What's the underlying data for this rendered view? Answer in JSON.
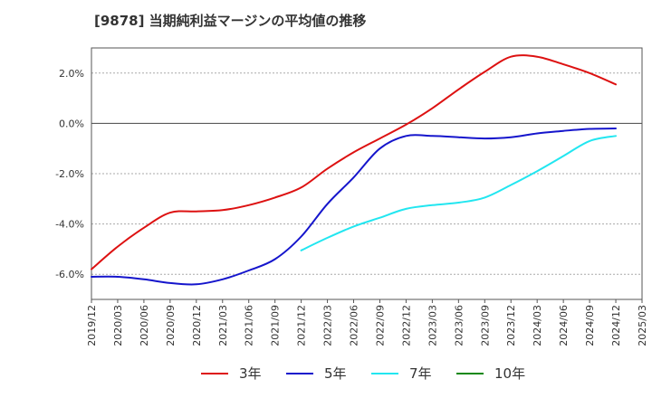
{
  "chart_data": {
    "type": "line",
    "title": "[9878]  当期純利益マージンの平均値の推移",
    "xlabel": "",
    "ylabel": "",
    "x": [
      "2019/12",
      "2020/03",
      "2020/06",
      "2020/09",
      "2020/12",
      "2021/03",
      "2021/06",
      "2021/09",
      "2021/12",
      "2022/03",
      "2022/06",
      "2022/09",
      "2022/12",
      "2023/03",
      "2023/06",
      "2023/09",
      "2023/12",
      "2024/03",
      "2024/06",
      "2024/09",
      "2024/12",
      "2025/03"
    ],
    "ylim": [
      -7.0,
      3.0
    ],
    "yticks": [
      2.0,
      0.0,
      -2.0,
      -4.0,
      -6.0
    ],
    "ytick_labels": [
      "2.0%",
      "0.0%",
      "-2.0%",
      "-4.0%",
      "-6.0%"
    ],
    "grid": true,
    "legend_position": "bottom",
    "series": [
      {
        "name": "3年",
        "color": "#dd1111",
        "values": [
          -5.8,
          -4.9,
          -4.15,
          -3.55,
          -3.5,
          -3.45,
          -3.25,
          -2.95,
          -2.55,
          -1.8,
          -1.15,
          -0.6,
          -0.05,
          0.6,
          1.35,
          2.05,
          2.65,
          2.65,
          2.35,
          2.0,
          1.55,
          null
        ]
      },
      {
        "name": "5年",
        "color": "#1515cc",
        "values": [
          -6.1,
          -6.1,
          -6.2,
          -6.35,
          -6.4,
          -6.2,
          -5.85,
          -5.4,
          -4.5,
          -3.2,
          -2.15,
          -1.0,
          -0.5,
          -0.5,
          -0.55,
          -0.6,
          -0.55,
          -0.4,
          -0.3,
          -0.22,
          -0.2,
          null
        ]
      },
      {
        "name": "7年",
        "color": "#22e6f0",
        "values": [
          null,
          null,
          null,
          null,
          null,
          null,
          null,
          null,
          -5.05,
          -4.55,
          -4.1,
          -3.75,
          -3.4,
          -3.25,
          -3.15,
          -2.95,
          -2.45,
          -1.9,
          -1.3,
          -0.7,
          -0.5,
          null
        ]
      },
      {
        "name": "10年",
        "color": "#118811",
        "values": [
          null,
          null,
          null,
          null,
          null,
          null,
          null,
          null,
          null,
          null,
          null,
          null,
          null,
          null,
          null,
          null,
          null,
          null,
          null,
          null,
          null,
          null
        ]
      }
    ]
  }
}
